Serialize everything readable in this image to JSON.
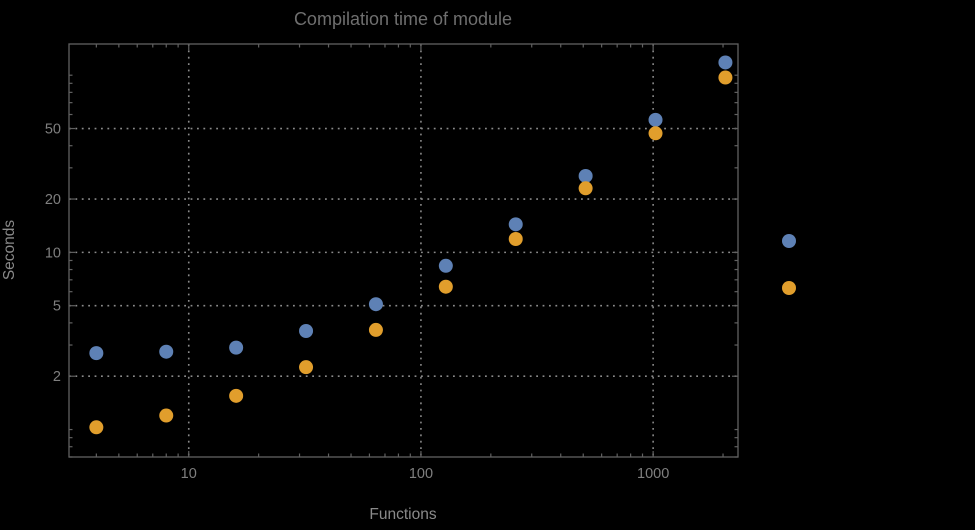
{
  "title": "Compilation time of module",
  "colors": {
    "background": "#000000",
    "frame": "#616161",
    "grid": "#8a8a8a",
    "title_text": "#6f6f6f",
    "tick_text": "#7f7f7f",
    "axis_label_text": "#8a8a8a",
    "series_blue": "#5E81B5",
    "series_orange": "#E19E2C"
  },
  "chart_data": {
    "type": "scatter",
    "title": "Compilation time of module",
    "xlabel": "Functions",
    "ylabel": "Seconds",
    "x_scale": "log",
    "y_scale": "log",
    "grid": "dotted",
    "x": [
      4,
      8,
      16,
      32,
      64,
      128,
      256,
      512,
      1024,
      2048
    ],
    "series": [
      {
        "name": "",
        "color": "#5E81B5",
        "values": [
          2.7,
          2.75,
          2.9,
          3.6,
          5.1,
          8.4,
          14.4,
          27,
          56,
          118
        ]
      },
      {
        "name": "",
        "color": "#E19E2C",
        "values": [
          1.03,
          1.2,
          1.55,
          2.25,
          3.65,
          6.4,
          11.9,
          23,
          47,
          97
        ]
      }
    ],
    "x_ticks": [
      10,
      100,
      1000
    ],
    "x_tick_labels": [
      "10",
      "100",
      "1000"
    ],
    "y_ticks": [
      2,
      5,
      10,
      20,
      50
    ],
    "y_tick_labels": [
      "2",
      "5",
      "10",
      "20",
      "50"
    ],
    "x_range": [
      3.05,
      2320
    ],
    "y_range": [
      0.7,
      150
    ],
    "legend_position": "right-outside",
    "legend_labels_visible": false
  }
}
